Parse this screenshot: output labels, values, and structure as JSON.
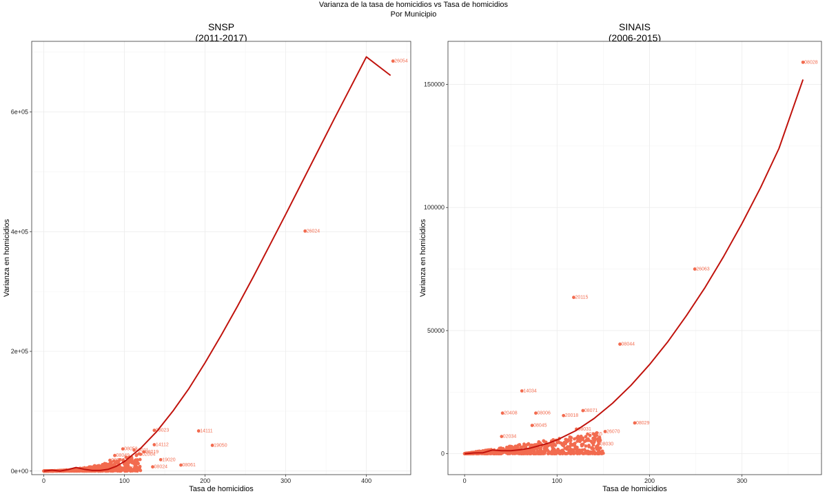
{
  "figure": {
    "title": "Varianza de la tasa de homicidios vs Tasa de homicidios",
    "subtitle": "Por Municipio"
  },
  "colors": {
    "points": "#f26b4f",
    "fit_line": "#c0120c",
    "grid": "#ebebeb",
    "border": "#333333"
  },
  "chart_data": [
    {
      "type": "scatter",
      "title": "SNSP",
      "subtitle": "(2011-2017)",
      "xlabel": "Tasa de homicidios",
      "ylabel": "Varianza en homicidios",
      "xlim": [
        -15,
        455
      ],
      "ylim": [
        -6000,
        718000
      ],
      "xticks": [
        0,
        100,
        200,
        300,
        400
      ],
      "yticks": [
        0,
        200000,
        400000,
        600000
      ],
      "ytick_labels": [
        "0e+00",
        "2e+05",
        "4e+05",
        "6e+05"
      ],
      "grid": true,
      "points": [
        {
          "x": 433,
          "y": 685000,
          "label": "26054"
        },
        {
          "x": 324,
          "y": 401000,
          "label": "26024"
        },
        {
          "x": 137,
          "y": 68000,
          "label": "08023"
        },
        {
          "x": 192,
          "y": 67000,
          "label": "14111"
        },
        {
          "x": 209,
          "y": 43000,
          "label": "19050"
        },
        {
          "x": 137,
          "y": 44000,
          "label": "14112"
        },
        {
          "x": 145,
          "y": 19000,
          "label": "19020"
        },
        {
          "x": 170,
          "y": 10000,
          "label": "08061"
        },
        {
          "x": 135,
          "y": 7000,
          "label": "08024"
        },
        {
          "x": 98,
          "y": 37000,
          "label": "08058"
        },
        {
          "x": 112,
          "y": 35000,
          "label": "19011"
        },
        {
          "x": 124,
          "y": 32000,
          "label": "08019"
        },
        {
          "x": 120,
          "y": 28000,
          "label": "02004"
        },
        {
          "x": 88,
          "y": 26000,
          "label": "08049"
        },
        {
          "x": 97,
          "y": 5000,
          "label": "08001"
        },
        {
          "x": 82,
          "y": 18000,
          "label": "08038"
        }
      ],
      "cluster_note": "dense overlapping cluster of labelled municipalities with x in 0–120 and y in 0–40000 (labels unreadable)",
      "fit_line": [
        [
          0,
          0
        ],
        [
          10,
          1500
        ],
        [
          20,
          0
        ],
        [
          30,
          2500
        ],
        [
          40,
          6000
        ],
        [
          50,
          3000
        ],
        [
          60,
          1000
        ],
        [
          70,
          1000
        ],
        [
          80,
          3000
        ],
        [
          90,
          8000
        ],
        [
          100,
          16000
        ],
        [
          120,
          38000
        ],
        [
          140,
          66000
        ],
        [
          160,
          100000
        ],
        [
          180,
          138000
        ],
        [
          200,
          181000
        ],
        [
          220,
          227000
        ],
        [
          240,
          275000
        ],
        [
          260,
          325000
        ],
        [
          280,
          377000
        ],
        [
          300,
          429000
        ],
        [
          320,
          482000
        ],
        [
          340,
          535000
        ],
        [
          360,
          588000
        ],
        [
          380,
          640000
        ],
        [
          400,
          692000
        ],
        [
          430,
          661000
        ]
      ]
    },
    {
      "type": "scatter",
      "title": "SINAIS",
      "subtitle": "(2006-2015)",
      "xlabel": "Tasa de homicidios",
      "ylabel": "Varianza en homicidios",
      "xlim": [
        -18,
        386
      ],
      "ylim": [
        -8500,
        167500
      ],
      "xticks": [
        0,
        100,
        200,
        300
      ],
      "yticks": [
        0,
        50000,
        100000,
        150000
      ],
      "ytick_labels": [
        "0",
        "50000",
        "100000",
        "150000"
      ],
      "grid": true,
      "points": [
        {
          "x": 366,
          "y": 159000,
          "label": "08028"
        },
        {
          "x": 249,
          "y": 75000,
          "label": "26063"
        },
        {
          "x": 118,
          "y": 63500,
          "label": "20115"
        },
        {
          "x": 168,
          "y": 44500,
          "label": "08044"
        },
        {
          "x": 62,
          "y": 25500,
          "label": "14034"
        },
        {
          "x": 41,
          "y": 16500,
          "label": "20408"
        },
        {
          "x": 77,
          "y": 16500,
          "label": "08006"
        },
        {
          "x": 107,
          "y": 15500,
          "label": "20018"
        },
        {
          "x": 128,
          "y": 17500,
          "label": "08071"
        },
        {
          "x": 184,
          "y": 12500,
          "label": "08029"
        },
        {
          "x": 152,
          "y": 9000,
          "label": "26070"
        },
        {
          "x": 133,
          "y": 8000,
          "label": "08065"
        },
        {
          "x": 121,
          "y": 10000,
          "label": "08031"
        },
        {
          "x": 73,
          "y": 11500,
          "label": "08045"
        },
        {
          "x": 145,
          "y": 4000,
          "label": "08030"
        },
        {
          "x": 96,
          "y": 1000,
          "label": "20015"
        },
        {
          "x": 40,
          "y": 7000,
          "label": "02034"
        }
      ],
      "cluster_note": "dense overlapping cluster of labelled municipalities with x in 0–150 and y in 0–12000 (labels unreadable)",
      "fit_line": [
        [
          0,
          0
        ],
        [
          10,
          300
        ],
        [
          20,
          400
        ],
        [
          30,
          1500
        ],
        [
          40,
          1200
        ],
        [
          50,
          1200
        ],
        [
          60,
          1600
        ],
        [
          70,
          2200
        ],
        [
          80,
          3200
        ],
        [
          90,
          4200
        ],
        [
          100,
          5600
        ],
        [
          120,
          9300
        ],
        [
          140,
          14300
        ],
        [
          160,
          20500
        ],
        [
          180,
          27800
        ],
        [
          200,
          36200
        ],
        [
          220,
          45600
        ],
        [
          240,
          56100
        ],
        [
          260,
          67500
        ],
        [
          280,
          80000
        ],
        [
          300,
          93500
        ],
        [
          320,
          108000
        ],
        [
          340,
          124000
        ],
        [
          366,
          152000
        ]
      ]
    }
  ]
}
